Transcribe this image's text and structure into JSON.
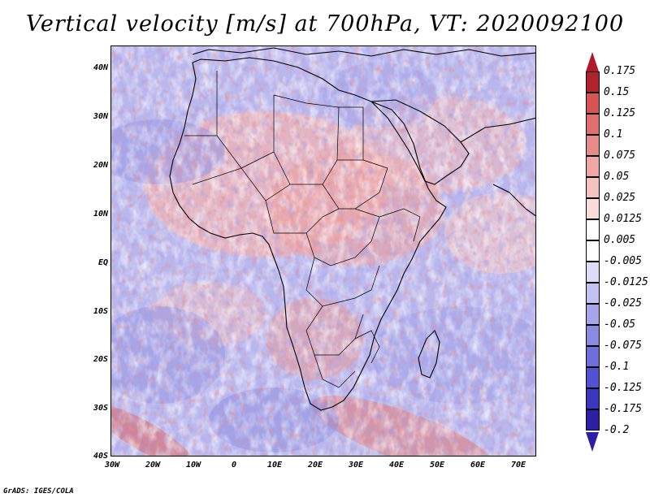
{
  "title": "Vertical velocity [m/s] at 700hPa, VT: 2020092100",
  "credit": "GrADS: IGES/COLA",
  "map": {
    "lat_labels": [
      "40N",
      "30N",
      "20N",
      "10N",
      "EQ",
      "10S",
      "20S",
      "30S",
      "40S"
    ],
    "lon_labels": [
      "30W",
      "20W",
      "10W",
      "0",
      "10E",
      "20E",
      "30E",
      "40E",
      "50E",
      "60E",
      "70E"
    ],
    "lat_range": [
      -40,
      45
    ],
    "lon_range": [
      -30,
      75
    ]
  },
  "colorbar": {
    "top_color": "#b2182b",
    "bottom_color": "#2c1ea5",
    "levels": [
      {
        "label": "0.175",
        "color": "#b2222b"
      },
      {
        "label": "0.15",
        "color": "#c83a38"
      },
      {
        "label": "0.125",
        "color": "#d65454"
      },
      {
        "label": "0.1",
        "color": "#e06e6e"
      },
      {
        "label": "0.075",
        "color": "#e88a88"
      },
      {
        "label": "0.05",
        "color": "#efa6a4"
      },
      {
        "label": "0.025",
        "color": "#f5c2c0"
      },
      {
        "label": "0.0125",
        "color": "#fadcdb"
      },
      {
        "label": "0.005",
        "color": "#ffffff"
      },
      {
        "label": "-0.005",
        "color": "#ffffff"
      },
      {
        "label": "-0.0125",
        "color": "#dcdcf8"
      },
      {
        "label": "-0.025",
        "color": "#c2c2f2"
      },
      {
        "label": "-0.05",
        "color": "#a6a6ec"
      },
      {
        "label": "-0.075",
        "color": "#8a8ae4"
      },
      {
        "label": "-0.1",
        "color": "#6e6edc"
      },
      {
        "label": "-0.125",
        "color": "#5252d2"
      },
      {
        "label": "-0.175",
        "color": "#3a36c0"
      },
      {
        "label": "-0.2",
        "color": "#2c1ea5"
      }
    ]
  }
}
